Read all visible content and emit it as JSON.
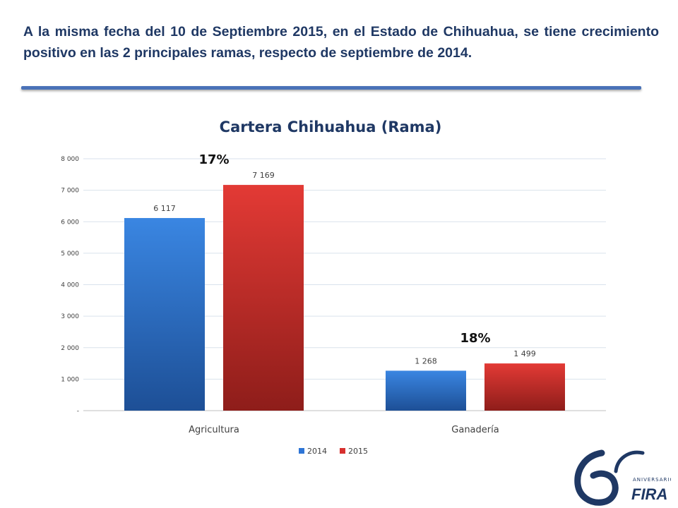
{
  "headline": "A la misma fecha del 10 de Septiembre 2015, en el Estado de Chihuahua,  se tiene crecimiento positivo en las 2 principales ramas, respecto de septiembre de 2014.",
  "chart_data": {
    "type": "bar",
    "title": "Cartera Chihuahua (Rama)",
    "categories": [
      "Agricultura",
      "Ganadería"
    ],
    "series": [
      {
        "name": "2014",
        "values": [
          6117,
          1268
        ],
        "labels": [
          "6 117",
          "1 268"
        ],
        "color": "#2e75d6"
      },
      {
        "name": "2015",
        "values": [
          7169,
          1499
        ],
        "labels": [
          "7 169",
          "1 499"
        ],
        "color": "#d7302e"
      }
    ],
    "growth_labels": [
      "17%",
      "18%"
    ],
    "ylim": [
      0,
      8000
    ],
    "yticks": [
      {
        "value": 0,
        "label": "-"
      },
      {
        "value": 1000,
        "label": "1 000"
      },
      {
        "value": 2000,
        "label": "2 000"
      },
      {
        "value": 3000,
        "label": "3 000"
      },
      {
        "value": 4000,
        "label": "4 000"
      },
      {
        "value": 5000,
        "label": "5 000"
      },
      {
        "value": 6000,
        "label": "6 000"
      },
      {
        "value": 7000,
        "label": "7 000"
      },
      {
        "value": 8000,
        "label": "8 000"
      }
    ],
    "grid": true,
    "legend_position": "bottom",
    "xlabel": "",
    "ylabel": ""
  },
  "logo": {
    "number_text": "60",
    "subtitle": "ANIVERSARIO",
    "brand": "FIRA",
    "color": "#1f3864"
  }
}
